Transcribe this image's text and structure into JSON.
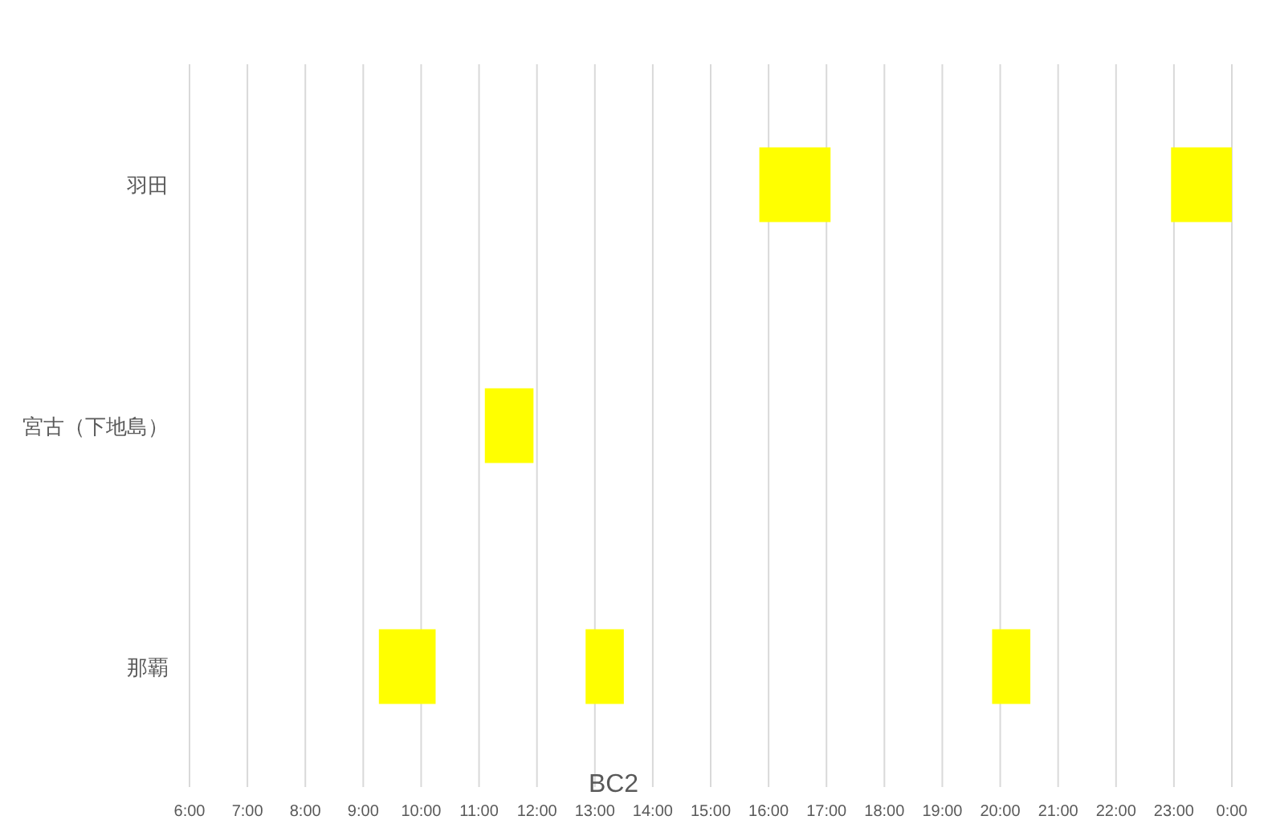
{
  "chart_data": {
    "type": "bar",
    "orientation": "horizontal",
    "title": "BC2",
    "categories": [
      "羽田",
      "宮古（下地島）",
      "那覇"
    ],
    "series": [
      {
        "color": "#ffff00",
        "values": [
          1.23,
          0.84,
          0.98
        ],
        "base": [
          15.84,
          11.1,
          9.27
        ]
      },
      {
        "color": "#ffff00",
        "values": [
          1.05,
          null,
          0.66
        ],
        "base": [
          22.95,
          null,
          12.84
        ]
      },
      {
        "color": "#ffff00",
        "values": [
          null,
          null,
          0.66
        ],
        "base": [
          null,
          null,
          19.86
        ]
      }
    ],
    "xlim": [
      6,
      24
    ],
    "xticks": [
      {
        "value": 6,
        "label": "6:00"
      },
      {
        "value": 7,
        "label": "7:00"
      },
      {
        "value": 8,
        "label": "8:00"
      },
      {
        "value": 9,
        "label": "9:00"
      },
      {
        "value": 10,
        "label": "10:00"
      },
      {
        "value": 11,
        "label": "11:00"
      },
      {
        "value": 12,
        "label": "12:00"
      },
      {
        "value": 13,
        "label": "13:00"
      },
      {
        "value": 14,
        "label": "14:00"
      },
      {
        "value": 15,
        "label": "15:00"
      },
      {
        "value": 16,
        "label": "16:00"
      },
      {
        "value": 17,
        "label": "17:00"
      },
      {
        "value": 18,
        "label": "18:00"
      },
      {
        "value": 19,
        "label": "19:00"
      },
      {
        "value": 20,
        "label": "20:00"
      },
      {
        "value": 21,
        "label": "21:00"
      },
      {
        "value": 22,
        "label": "22:00"
      },
      {
        "value": 23,
        "label": "23:00"
      },
      {
        "value": 24,
        "label": "0:00"
      }
    ],
    "grid": "x"
  }
}
